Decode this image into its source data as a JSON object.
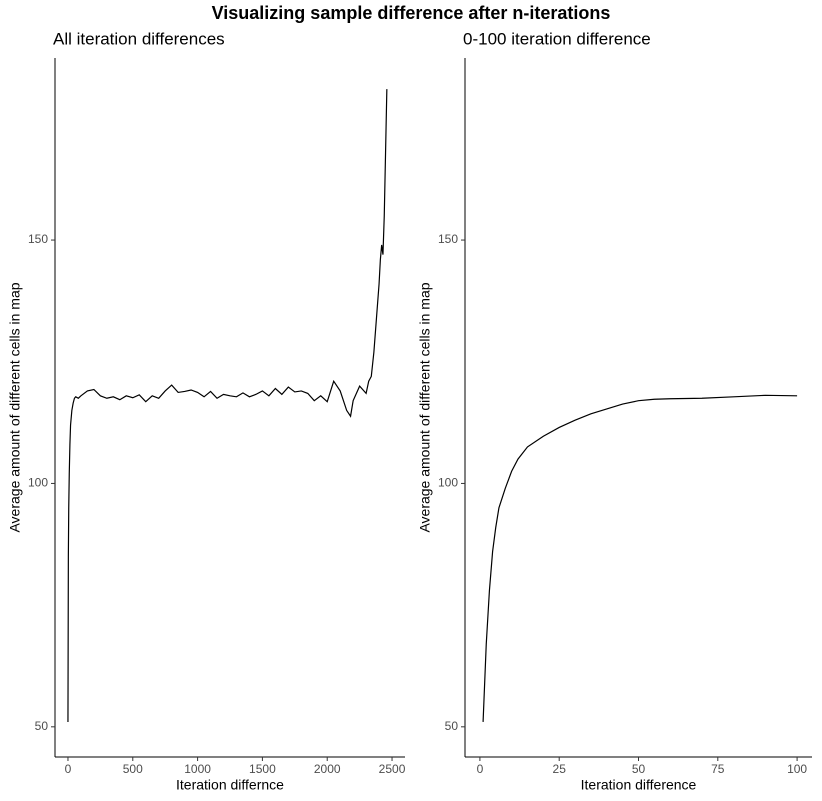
{
  "title": "Visualizing sample difference after n-iterations",
  "chart_data": [
    {
      "type": "line",
      "title": "All iteration differences",
      "x_label": "Iteration differnce",
      "y_label": "Average amount of different cells in map",
      "color": "#000000",
      "x": [
        0,
        3,
        6,
        10,
        15,
        20,
        30,
        40,
        50,
        60,
        80,
        100,
        150,
        200,
        250,
        300,
        350,
        400,
        450,
        500,
        550,
        600,
        650,
        700,
        750,
        800,
        850,
        900,
        950,
        1000,
        1050,
        1100,
        1150,
        1200,
        1250,
        1300,
        1350,
        1400,
        1450,
        1500,
        1550,
        1600,
        1650,
        1700,
        1750,
        1800,
        1850,
        1900,
        1950,
        2000,
        2050,
        2100,
        2150,
        2180,
        2200,
        2250,
        2300,
        2320,
        2340,
        2360,
        2380,
        2400,
        2410,
        2420,
        2430,
        2440,
        2450,
        2460
      ],
      "values": [
        51,
        85,
        95,
        102,
        108,
        112,
        115,
        116.5,
        117.5,
        117.8,
        117.5,
        118,
        119,
        119.3,
        118,
        117.5,
        117.8,
        117.2,
        118,
        117.6,
        118.2,
        116.8,
        118,
        117.5,
        119,
        120.2,
        118.7,
        118.9,
        119.2,
        118.7,
        117.8,
        118.9,
        117.5,
        118.3,
        118,
        117.8,
        118.6,
        117.8,
        118.3,
        119,
        118,
        119.5,
        118.3,
        119.8,
        118.8,
        119,
        118.5,
        117,
        118,
        116.8,
        121,
        119,
        115,
        113.8,
        117,
        120,
        118.5,
        121,
        122,
        127,
        134,
        141,
        146,
        149,
        147,
        155,
        168,
        181
      ],
      "xlim": [
        -100,
        2600
      ],
      "ylim": [
        43.8,
        187.4
      ],
      "xticks": [
        0,
        500,
        1000,
        1500,
        2000,
        2500
      ],
      "yticks": [
        50,
        100,
        150
      ]
    },
    {
      "type": "line",
      "title": "0-100 iteration difference",
      "x_label": "Iteration difference",
      "y_label": "Average amount of different cells in map",
      "color": "#000000",
      "x": [
        1,
        2,
        3,
        4,
        5,
        6,
        8,
        10,
        12,
        15,
        20,
        25,
        30,
        35,
        40,
        45,
        50,
        55,
        60,
        70,
        80,
        90,
        100
      ],
      "values": [
        51,
        67,
        78,
        86,
        91,
        95,
        99,
        102.5,
        105,
        107.5,
        109.7,
        111.5,
        113,
        114.3,
        115.3,
        116.3,
        117,
        117.3,
        117.4,
        117.5,
        117.8,
        118.1,
        118
      ],
      "xlim": [
        -4.7,
        104.7
      ],
      "ylim": [
        43.8,
        187.4
      ],
      "xticks": [
        0,
        25,
        50,
        75,
        100
      ],
      "yticks": [
        50,
        100,
        150
      ]
    }
  ]
}
